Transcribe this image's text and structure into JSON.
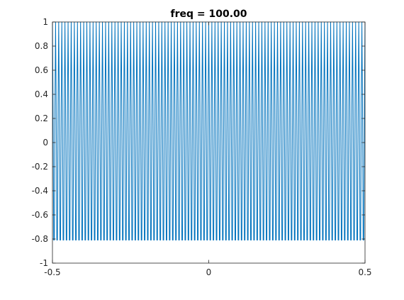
{
  "chart_data": {
    "type": "line",
    "title": "freq = 100.00",
    "xlabel": "",
    "ylabel": "",
    "xlim": [
      -0.5,
      0.5
    ],
    "ylim": [
      -1,
      1
    ],
    "x_ticks": [
      -0.5,
      0,
      0.5
    ],
    "x_tick_labels": [
      "-0.5",
      "0",
      "0.5"
    ],
    "y_ticks": [
      -1,
      -0.8,
      -0.6,
      -0.4,
      -0.2,
      0,
      0.2,
      0.4,
      0.6,
      0.8,
      1
    ],
    "y_tick_labels": [
      "-1",
      "-0.8",
      "-0.6",
      "-0.4",
      "-0.2",
      "0",
      "0.2",
      "0.4",
      "0.6",
      "0.8",
      "1"
    ],
    "grid": false,
    "box": true,
    "series": [
      {
        "function": "cos(2*pi*100*x)",
        "frequency": 100,
        "amplitude": 1,
        "sample_spacing": 0.002,
        "x_start": -0.5,
        "x_end": 0.5,
        "color": "#0072bd"
      }
    ]
  }
}
